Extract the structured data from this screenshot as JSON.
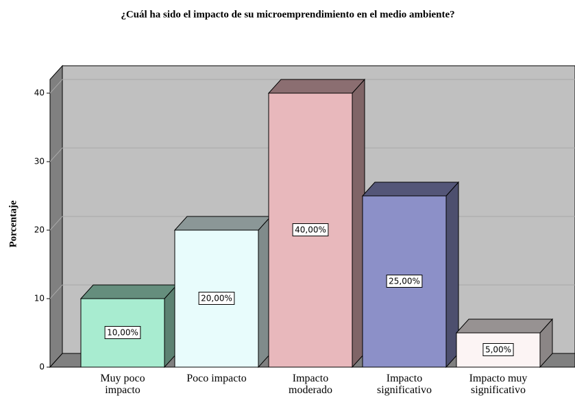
{
  "chart_data": {
    "type": "bar3d",
    "title": "¿Cuál ha sido el impacto de su microemprendimiento en el medio ambiente?",
    "y_label": "Porcentaje",
    "categories": [
      "Muy poco impacto",
      "Poco impacto",
      "Impacto moderado",
      "Impacto significativo",
      "Impacto muy significativo"
    ],
    "values": [
      10,
      20,
      40,
      25,
      5
    ],
    "value_labels": [
      "10,00%",
      "20,00%",
      "40,00%",
      "25,00%",
      "5,00%"
    ],
    "colors": [
      "#a8ecd0",
      "#e8fcfc",
      "#e8b8bc",
      "#8c90c8",
      "#fcf4f4"
    ],
    "ylim": [
      0,
      42
    ],
    "yticks": [
      0,
      10,
      20,
      30,
      40
    ],
    "grid": true
  }
}
